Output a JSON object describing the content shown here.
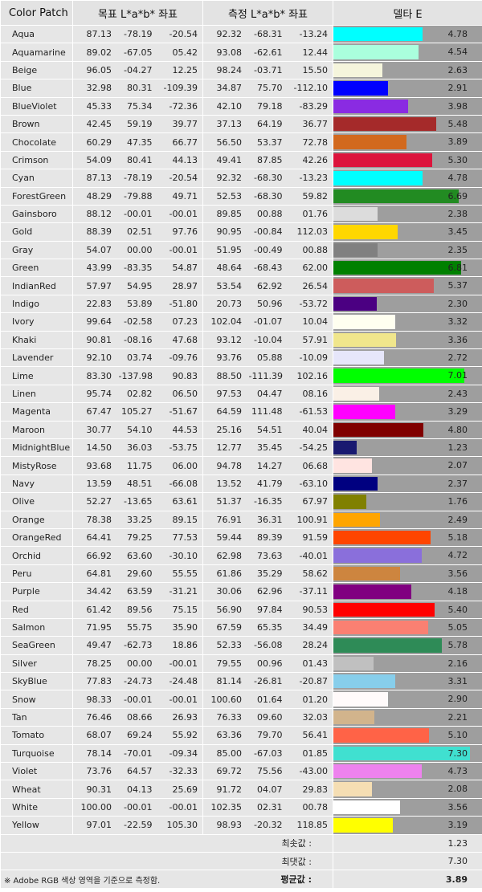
{
  "headers": {
    "patch": "Color Patch",
    "target": "목표 L*a*b* 좌표",
    "measured": "측정 L*a*b* 좌표",
    "delta": "델타 E"
  },
  "chart_data": {
    "type": "bar",
    "xlim": [
      0,
      7.3
    ],
    "rows": [
      {
        "name": "Aqua",
        "color": "#00FFFF",
        "target": [
          "87.13",
          "-78.19",
          "-20.54"
        ],
        "measured": [
          "92.32",
          "-68.31",
          "-13.24"
        ],
        "delta": "4.78"
      },
      {
        "name": "Aquamarine",
        "color": "#AAFFDD",
        "target": [
          "89.02",
          "-67.05",
          "05.42"
        ],
        "measured": [
          "93.08",
          "-62.61",
          "12.44"
        ],
        "delta": "4.54"
      },
      {
        "name": "Beige",
        "color": "#F5F5DC",
        "target": [
          "96.05",
          "-04.27",
          "12.25"
        ],
        "measured": [
          "98.24",
          "-03.71",
          "15.50"
        ],
        "delta": "2.63"
      },
      {
        "name": "Blue",
        "color": "#0000FF",
        "target": [
          "32.98",
          "80.31",
          "-109.39"
        ],
        "measured": [
          "34.87",
          "75.70",
          "-112.10"
        ],
        "delta": "2.91"
      },
      {
        "name": "BlueViolet",
        "color": "#8A2BE2",
        "target": [
          "45.33",
          "75.34",
          "-72.36"
        ],
        "measured": [
          "42.10",
          "79.18",
          "-83.29"
        ],
        "delta": "3.98"
      },
      {
        "name": "Brown",
        "color": "#A52A2A",
        "target": [
          "42.45",
          "59.19",
          "39.77"
        ],
        "measured": [
          "37.13",
          "64.19",
          "36.77"
        ],
        "delta": "5.48"
      },
      {
        "name": "Chocolate",
        "color": "#D2691E",
        "target": [
          "60.29",
          "47.35",
          "66.77"
        ],
        "measured": [
          "56.50",
          "53.37",
          "72.78"
        ],
        "delta": "3.89"
      },
      {
        "name": "Crimson",
        "color": "#DC143C",
        "target": [
          "54.09",
          "80.41",
          "44.13"
        ],
        "measured": [
          "49.41",
          "87.85",
          "42.26"
        ],
        "delta": "5.30"
      },
      {
        "name": "Cyan",
        "color": "#00FFFF",
        "target": [
          "87.13",
          "-78.19",
          "-20.54"
        ],
        "measured": [
          "92.32",
          "-68.30",
          "-13.23"
        ],
        "delta": "4.78"
      },
      {
        "name": "ForestGreen",
        "color": "#228B22",
        "target": [
          "48.29",
          "-79.88",
          "49.71"
        ],
        "measured": [
          "52.53",
          "-68.30",
          "59.82"
        ],
        "delta": "6.69"
      },
      {
        "name": "Gainsboro",
        "color": "#DCDCDC",
        "target": [
          "88.12",
          "-00.01",
          "-00.01"
        ],
        "measured": [
          "89.85",
          "00.88",
          "01.76"
        ],
        "delta": "2.38"
      },
      {
        "name": "Gold",
        "color": "#FFD700",
        "target": [
          "88.39",
          "02.51",
          "97.76"
        ],
        "measured": [
          "90.95",
          "-00.84",
          "112.03"
        ],
        "delta": "3.45"
      },
      {
        "name": "Gray",
        "color": "#808080",
        "target": [
          "54.07",
          "00.00",
          "-00.01"
        ],
        "measured": [
          "51.95",
          "-00.49",
          "00.88"
        ],
        "delta": "2.35"
      },
      {
        "name": "Green",
        "color": "#008000",
        "target": [
          "43.99",
          "-83.35",
          "54.87"
        ],
        "measured": [
          "48.64",
          "-68.43",
          "62.00"
        ],
        "delta": "6.81"
      },
      {
        "name": "IndianRed",
        "color": "#CD5C5C",
        "target": [
          "57.97",
          "54.95",
          "28.97"
        ],
        "measured": [
          "53.54",
          "62.92",
          "26.54"
        ],
        "delta": "5.37"
      },
      {
        "name": "Indigo",
        "color": "#4B0082",
        "target": [
          "22.83",
          "53.89",
          "-51.80"
        ],
        "measured": [
          "20.73",
          "50.96",
          "-53.72"
        ],
        "delta": "2.30"
      },
      {
        "name": "Ivory",
        "color": "#FFFFF0",
        "target": [
          "99.64",
          "-02.58",
          "07.23"
        ],
        "measured": [
          "102.04",
          "-01.07",
          "10.04"
        ],
        "delta": "3.32"
      },
      {
        "name": "Khaki",
        "color": "#F0E68C",
        "target": [
          "90.81",
          "-08.16",
          "47.68"
        ],
        "measured": [
          "93.12",
          "-10.04",
          "57.91"
        ],
        "delta": "3.36"
      },
      {
        "name": "Lavender",
        "color": "#E6E6FA",
        "target": [
          "92.10",
          "03.74",
          "-09.76"
        ],
        "measured": [
          "93.76",
          "05.88",
          "-10.09"
        ],
        "delta": "2.72"
      },
      {
        "name": "Lime",
        "color": "#00FF00",
        "target": [
          "83.30",
          "-137.98",
          "90.83"
        ],
        "measured": [
          "88.50",
          "-111.39",
          "102.16"
        ],
        "delta": "7.01"
      },
      {
        "name": "Linen",
        "color": "#FAF0E6",
        "target": [
          "95.74",
          "02.82",
          "06.50"
        ],
        "measured": [
          "97.53",
          "04.47",
          "08.16"
        ],
        "delta": "2.43"
      },
      {
        "name": "Magenta",
        "color": "#FF00FF",
        "target": [
          "67.47",
          "105.27",
          "-51.67"
        ],
        "measured": [
          "64.59",
          "111.48",
          "-61.53"
        ],
        "delta": "3.29"
      },
      {
        "name": "Maroon",
        "color": "#800000",
        "target": [
          "30.77",
          "54.10",
          "44.53"
        ],
        "measured": [
          "25.16",
          "54.51",
          "40.04"
        ],
        "delta": "4.80"
      },
      {
        "name": "MidnightBlue",
        "color": "#191970",
        "target": [
          "14.50",
          "36.03",
          "-53.75"
        ],
        "measured": [
          "12.77",
          "35.45",
          "-54.25"
        ],
        "delta": "1.23"
      },
      {
        "name": "MistyRose",
        "color": "#FFE4E1",
        "target": [
          "93.68",
          "11.75",
          "06.00"
        ],
        "measured": [
          "94.78",
          "14.27",
          "06.68"
        ],
        "delta": "2.07"
      },
      {
        "name": "Navy",
        "color": "#000080",
        "target": [
          "13.59",
          "48.51",
          "-66.08"
        ],
        "measured": [
          "13.52",
          "41.79",
          "-63.10"
        ],
        "delta": "2.37"
      },
      {
        "name": "Olive",
        "color": "#808000",
        "target": [
          "52.27",
          "-13.65",
          "63.61"
        ],
        "measured": [
          "51.37",
          "-16.35",
          "67.97"
        ],
        "delta": "1.76"
      },
      {
        "name": "Orange",
        "color": "#FFA500",
        "target": [
          "78.38",
          "33.25",
          "89.15"
        ],
        "measured": [
          "76.91",
          "36.31",
          "100.91"
        ],
        "delta": "2.49"
      },
      {
        "name": "OrangeRed",
        "color": "#FF4500",
        "target": [
          "64.41",
          "79.25",
          "77.53"
        ],
        "measured": [
          "59.44",
          "89.39",
          "91.59"
        ],
        "delta": "5.18"
      },
      {
        "name": "Orchid",
        "color": "#8A6FDB",
        "target": [
          "66.92",
          "63.60",
          "-30.10"
        ],
        "measured": [
          "62.98",
          "73.63",
          "-40.01"
        ],
        "delta": "4.72"
      },
      {
        "name": "Peru",
        "color": "#CD853F",
        "target": [
          "64.81",
          "29.60",
          "55.55"
        ],
        "measured": [
          "61.86",
          "35.29",
          "58.62"
        ],
        "delta": "3.56"
      },
      {
        "name": "Purple",
        "color": "#800080",
        "target": [
          "34.42",
          "63.59",
          "-31.21"
        ],
        "measured": [
          "30.06",
          "62.96",
          "-37.11"
        ],
        "delta": "4.18"
      },
      {
        "name": "Red",
        "color": "#FF0000",
        "target": [
          "61.42",
          "89.56",
          "75.15"
        ],
        "measured": [
          "56.90",
          "97.84",
          "90.53"
        ],
        "delta": "5.40"
      },
      {
        "name": "Salmon",
        "color": "#FA8072",
        "target": [
          "71.95",
          "55.75",
          "35.90"
        ],
        "measured": [
          "67.59",
          "65.35",
          "34.49"
        ],
        "delta": "5.05"
      },
      {
        "name": "SeaGreen",
        "color": "#2E8B57",
        "target": [
          "49.47",
          "-62.73",
          "18.86"
        ],
        "measured": [
          "52.33",
          "-56.08",
          "28.24"
        ],
        "delta": "5.78"
      },
      {
        "name": "Silver",
        "color": "#C0C0C0",
        "target": [
          "78.25",
          "00.00",
          "-00.01"
        ],
        "measured": [
          "79.55",
          "00.96",
          "01.43"
        ],
        "delta": "2.16"
      },
      {
        "name": "SkyBlue",
        "color": "#87CEEB",
        "target": [
          "77.83",
          "-24.73",
          "-24.48"
        ],
        "measured": [
          "81.14",
          "-26.81",
          "-20.87"
        ],
        "delta": "3.31"
      },
      {
        "name": "Snow",
        "color": "#FFFAFA",
        "target": [
          "98.33",
          "-00.01",
          "-00.01"
        ],
        "measured": [
          "100.60",
          "01.64",
          "01.20"
        ],
        "delta": "2.90"
      },
      {
        "name": "Tan",
        "color": "#D2B48C",
        "target": [
          "76.46",
          "08.66",
          "26.93"
        ],
        "measured": [
          "76.33",
          "09.60",
          "32.03"
        ],
        "delta": "2.21"
      },
      {
        "name": "Tomato",
        "color": "#FF6347",
        "target": [
          "68.07",
          "69.24",
          "55.92"
        ],
        "measured": [
          "63.36",
          "79.70",
          "56.41"
        ],
        "delta": "5.10"
      },
      {
        "name": "Turquoise",
        "color": "#40E0D0",
        "target": [
          "78.14",
          "-70.01",
          "-09.34"
        ],
        "measured": [
          "85.00",
          "-67.03",
          "01.85"
        ],
        "delta": "7.30"
      },
      {
        "name": "Violet",
        "color": "#EE82EE",
        "target": [
          "73.76",
          "64.57",
          "-32.33"
        ],
        "measured": [
          "69.72",
          "75.56",
          "-43.00"
        ],
        "delta": "4.73"
      },
      {
        "name": "Wheat",
        "color": "#F5DEB3",
        "target": [
          "90.31",
          "04.13",
          "25.69"
        ],
        "measured": [
          "91.72",
          "04.07",
          "29.83"
        ],
        "delta": "2.08"
      },
      {
        "name": "White",
        "color": "#FFFFFF",
        "target": [
          "100.00",
          "-00.01",
          "-00.01"
        ],
        "measured": [
          "102.35",
          "02.31",
          "00.78"
        ],
        "delta": "3.56"
      },
      {
        "name": "Yellow",
        "color": "#FFFF00",
        "target": [
          "97.01",
          "-22.59",
          "105.30"
        ],
        "measured": [
          "98.93",
          "-20.32",
          "118.85"
        ],
        "delta": "3.19"
      }
    ]
  },
  "footer": {
    "min_label": "최솟값 :",
    "min_value": "1.23",
    "max_label": "최댓값 :",
    "max_value": "7.30",
    "avg_label": "평균값 :",
    "avg_value": "3.89",
    "note": "※ Adobe RGB 색상 영역을 기준으로 측정함."
  }
}
